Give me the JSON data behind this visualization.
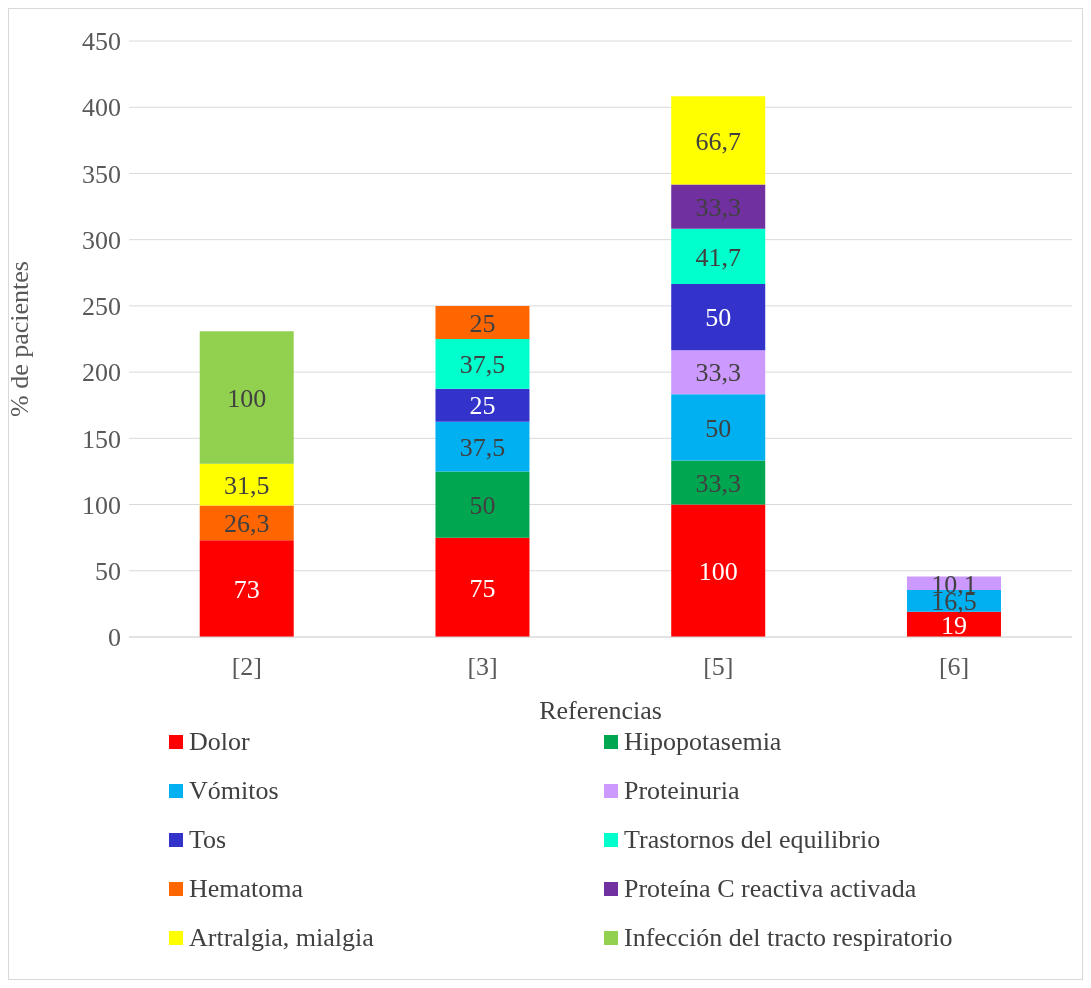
{
  "chart_data": {
    "type": "bar",
    "stacked": true,
    "xlabel": "Referencias",
    "ylabel": "% de pacientes",
    "categories": [
      "[2]",
      "[3]",
      "[5]",
      "[6]"
    ],
    "ylim": [
      0,
      450
    ],
    "yticks": [
      0,
      50,
      100,
      150,
      200,
      250,
      300,
      350,
      400,
      450
    ],
    "grid": "y",
    "legend": "bottom",
    "series": [
      {
        "name": "Dolor",
        "color": "#ff0000",
        "values": [
          73,
          75,
          100,
          19
        ],
        "value_labels": [
          "73",
          "75",
          "100",
          "19"
        ]
      },
      {
        "name": "Hipopotasemia",
        "color": "#00a650",
        "values": [
          null,
          50,
          33.3,
          null
        ],
        "value_labels": [
          null,
          "50",
          "33,3",
          null
        ]
      },
      {
        "name": "Vómitos",
        "color": "#00b0f0",
        "values": [
          null,
          37.5,
          50,
          16.5
        ],
        "value_labels": [
          null,
          "37,5",
          "50",
          "16,5"
        ]
      },
      {
        "name": "Proteinuria",
        "color": "#cc99ff",
        "values": [
          null,
          null,
          33.3,
          10.1
        ],
        "value_labels": [
          null,
          null,
          "33,3",
          "10,1"
        ]
      },
      {
        "name": "Tos",
        "color": "#3333cc",
        "values": [
          null,
          25,
          50,
          null
        ],
        "value_labels": [
          null,
          "25",
          "50",
          null
        ]
      },
      {
        "name": "Trastornos del equilibrio",
        "color": "#00ffcc",
        "values": [
          null,
          37.5,
          41.7,
          null
        ],
        "value_labels": [
          null,
          "37,5",
          "41,7",
          null
        ]
      },
      {
        "name": "Hematoma",
        "color": "#ff6600",
        "values": [
          26.3,
          25,
          null,
          null
        ],
        "value_labels": [
          "26,3",
          "25",
          null,
          null
        ]
      },
      {
        "name": "Proteína C reactiva activada",
        "color": "#7030a0",
        "values": [
          null,
          null,
          33.3,
          null
        ],
        "value_labels": [
          null,
          null,
          "33,3",
          null
        ]
      },
      {
        "name": "Artralgia, mialgia",
        "color": "#ffff00",
        "values": [
          31.5,
          null,
          66.7,
          null
        ],
        "value_labels": [
          "31,5",
          null,
          "66,7",
          null
        ]
      },
      {
        "name": "Infección del tracto respiratorio",
        "color": "#92d050",
        "values": [
          100,
          null,
          null,
          null
        ],
        "value_labels": [
          "100",
          null,
          null,
          null
        ]
      }
    ]
  }
}
